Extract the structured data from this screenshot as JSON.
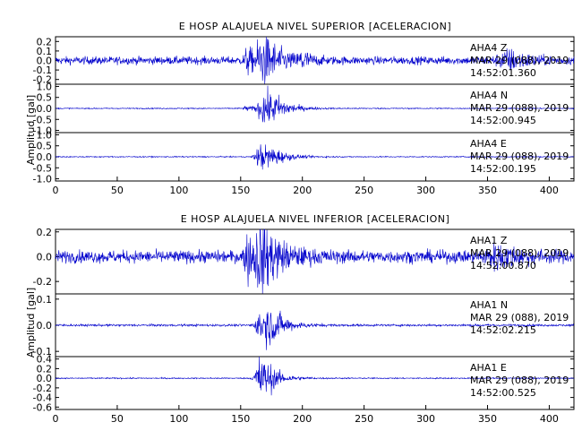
{
  "chart_data": [
    {
      "type": "line",
      "title": "E HOSP ALAJUELA NIVEL SUPERIOR [ACELERACION]",
      "ylabel": "Amplitud [gal]",
      "xlim": [
        0,
        420
      ],
      "xticks": [
        0,
        50,
        100,
        150,
        200,
        250,
        300,
        350,
        400
      ],
      "grid": false,
      "panels": [
        {
          "name": "AHA4 Z",
          "date": "MAR 29 (088), 2019",
          "time": "14:52:01.360",
          "ylim": [
            -0.25,
            0.25
          ],
          "yticks": [
            -0.2,
            -0.1,
            0.0,
            0.1,
            0.2
          ],
          "yticklabels": [
            "-0.2",
            "-0.1",
            "0.0",
            "0.1",
            "0.2"
          ],
          "noise": 0.05,
          "peak": 0.24,
          "events": [
            {
              "t": 156,
              "amp": 0.16,
              "w": 4
            },
            {
              "t": 167,
              "amp": 0.24,
              "w": 6
            },
            {
              "t": 175,
              "amp": 0.15,
              "w": 12
            },
            {
              "t": 200,
              "amp": 0.12,
              "w": 4
            },
            {
              "t": 368,
              "amp": 0.12,
              "w": 12
            }
          ]
        },
        {
          "name": "AHA4 N",
          "date": "MAR 29 (088), 2019",
          "time": "14:52:00.945",
          "ylim": [
            -1.1,
            1.1
          ],
          "yticks": [
            -1.0,
            -0.5,
            0.0,
            0.5,
            1.0
          ],
          "yticklabels": [
            "-1.0",
            "-0.5",
            "0.0",
            "0.5",
            "1.0"
          ],
          "noise": 0.03,
          "peak": 0.9,
          "events": [
            {
              "t": 170,
              "amp": 0.9,
              "w": 8
            },
            {
              "t": 180,
              "amp": 0.4,
              "w": 10
            },
            {
              "t": 155,
              "amp": 0.15,
              "w": 3
            }
          ]
        },
        {
          "name": "AHA4 E",
          "date": "MAR 29 (088), 2019",
          "time": "14:52:00.195",
          "ylim": [
            -1.1,
            1.1
          ],
          "yticks": [
            -1.0,
            -0.5,
            0.0,
            0.5,
            1.0
          ],
          "yticklabels": [
            "-1.0",
            "-0.5",
            "0.0",
            "0.5",
            "1.0"
          ],
          "noise": 0.03,
          "peak": 0.75,
          "events": [
            {
              "t": 167,
              "amp": 0.75,
              "w": 6
            },
            {
              "t": 178,
              "amp": 0.35,
              "w": 10
            }
          ]
        }
      ]
    },
    {
      "type": "line",
      "title": "E HOSP ALAJUELA NIVEL INFERIOR [ACELERACION]",
      "ylabel": "Amplitud [gal]",
      "xlim": [
        0,
        420
      ],
      "xticks": [
        0,
        50,
        100,
        150,
        200,
        250,
        300,
        350,
        400
      ],
      "grid": false,
      "panels": [
        {
          "name": "AHA1 Z",
          "date": "MAR 29 (088), 2019",
          "time": "14:52:00.870",
          "ylim": [
            -0.3,
            0.22
          ],
          "yticks": [
            -0.2,
            0.0,
            0.2
          ],
          "yticklabels": [
            "-0.2",
            "0.0",
            "0.2"
          ],
          "noise": 0.06,
          "peak": 0.26,
          "events": [
            {
              "t": 156,
              "amp": 0.2,
              "w": 4
            },
            {
              "t": 166,
              "amp": 0.26,
              "w": 6
            },
            {
              "t": 175,
              "amp": 0.15,
              "w": 14
            },
            {
              "t": 360,
              "amp": 0.1,
              "w": 14
            }
          ]
        },
        {
          "name": "AHA1 N",
          "date": "MAR 29 (088), 2019",
          "time": "14:52:02.215",
          "ylim": [
            -0.12,
            0.12
          ],
          "yticks": [
            -0.1,
            0.0,
            0.1
          ],
          "yticklabels": [
            "-0.1",
            "0.0",
            "0.1"
          ],
          "noise": 0.005,
          "peak": 0.1,
          "events": [
            {
              "t": 168,
              "amp": 0.1,
              "w": 6
            },
            {
              "t": 178,
              "amp": 0.05,
              "w": 10
            }
          ]
        },
        {
          "name": "AHA1 E",
          "date": "MAR 29 (088), 2019",
          "time": "14:52:00.525",
          "ylim": [
            -0.65,
            0.45
          ],
          "yticks": [
            -0.6,
            -0.4,
            -0.2,
            0.0,
            0.2,
            0.4
          ],
          "yticklabels": [
            "-0.6",
            "-0.4",
            "-0.2",
            "0.0",
            "0.2",
            "0.4"
          ],
          "noise": 0.015,
          "peak": 0.6,
          "events": [
            {
              "t": 166,
              "amp": 0.6,
              "w": 5
            },
            {
              "t": 175,
              "amp": 0.2,
              "w": 10
            }
          ]
        }
      ]
    }
  ]
}
